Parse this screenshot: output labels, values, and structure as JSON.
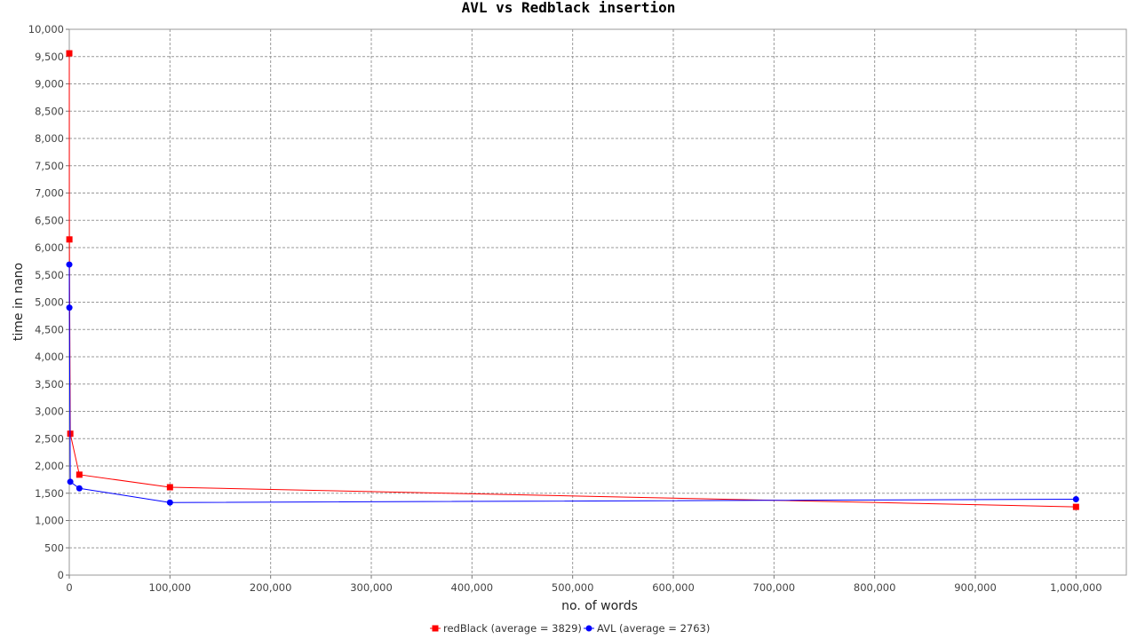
{
  "chart_data": {
    "type": "line",
    "title": "AVL vs Redblack insertion",
    "xlabel": "no. of words",
    "ylabel": "time in nano",
    "xlim": [
      0,
      1050000
    ],
    "ylim": [
      0,
      10000
    ],
    "x_ticks": [
      0,
      100000,
      200000,
      300000,
      400000,
      500000,
      600000,
      700000,
      800000,
      900000,
      1000000
    ],
    "x_tick_labels": [
      "0",
      "100,000",
      "200,000",
      "300,000",
      "400,000",
      "500,000",
      "600,000",
      "700,000",
      "800,000",
      "900,000",
      "1,000,000"
    ],
    "y_ticks": [
      0,
      500,
      1000,
      1500,
      2000,
      2500,
      3000,
      3500,
      4000,
      4500,
      5000,
      5500,
      6000,
      6500,
      7000,
      7500,
      8000,
      8500,
      9000,
      9500,
      10000
    ],
    "y_tick_labels": [
      "0",
      "500",
      "1,000",
      "1,500",
      "2,000",
      "2,500",
      "3,000",
      "3,500",
      "4,000",
      "4,500",
      "5,000",
      "5,500",
      "6,000",
      "6,500",
      "7,000",
      "7,500",
      "8,000",
      "8,500",
      "9,000",
      "9,500",
      "10,000"
    ],
    "grid": true,
    "legend_position": "bottom",
    "series": [
      {
        "name": "redBlack (average = 3829)",
        "color": "#ff0000",
        "marker": "square",
        "x": [
          10,
          100,
          1000,
          10000,
          100000,
          1000000
        ],
        "y": [
          9560,
          6150,
          2590,
          1840,
          1610,
          1250
        ]
      },
      {
        "name": "AVL (average = 2763)",
        "color": "#0000ff",
        "marker": "circle",
        "x": [
          10,
          100,
          1000,
          10000,
          100000,
          1000000
        ],
        "y": [
          5690,
          4900,
          1710,
          1590,
          1330,
          1390
        ]
      }
    ]
  }
}
